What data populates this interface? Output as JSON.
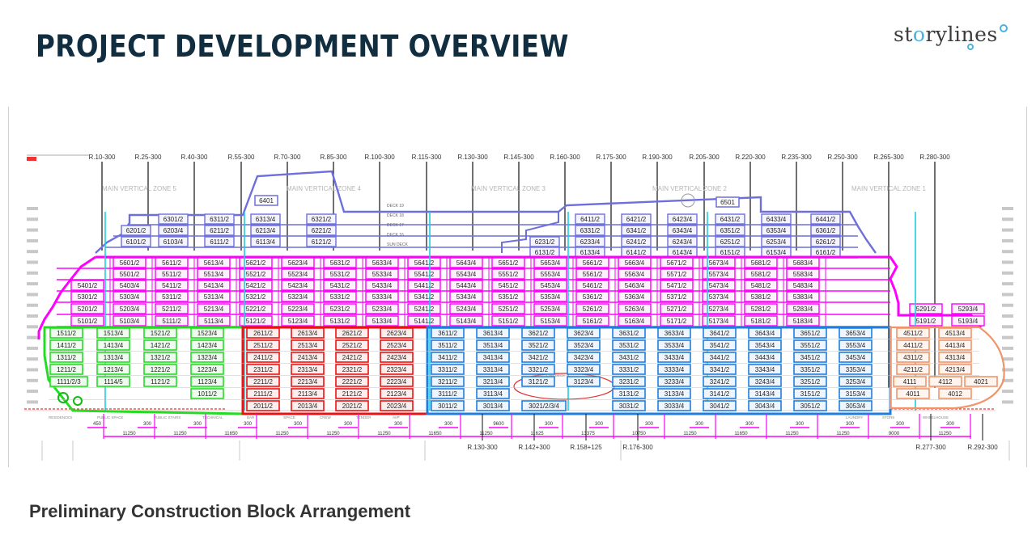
{
  "header": {
    "title": "PROJECT DEVELOPMENT OVERVIEW",
    "logo_text_pre": "st",
    "logo_text_o": "o",
    "logo_text_post": "rylines"
  },
  "caption": "Preliminary Construction Block Arrangement",
  "colors": {
    "title": "#112e41",
    "logo_accent": "#4ab3dc",
    "zone_superstructure": "#6f6fdc",
    "zone_accommodation": "#ff00ff",
    "zone_aft_hull": "#22dd22",
    "zone_mid_aft_hull": "#ee1111",
    "zone_mid_fore_hull": "#1e7ee0",
    "zone_fore_hull": "#f0956a"
  },
  "diagram": {
    "top_frames": [
      "R.10-300",
      "R.25-300",
      "R.40-300",
      "R.55-300",
      "R.70-300",
      "R.85-300",
      "R.100-300",
      "R.115-300",
      "R.130-300",
      "R.145-300",
      "R.160-300",
      "R.175-300",
      "R.190-300",
      "R.205-300",
      "R.220-300",
      "R.235-300",
      "R.250-300",
      "R.265-300",
      "R.280-300"
    ],
    "bottom_frames": [
      "R.130-300",
      "R.142+300",
      "R.158+125",
      "R.176-300",
      "R.277-300",
      "R.292-300"
    ],
    "zones": [
      "MAIN VERTICAL ZONE 5",
      "MAIN VERTICAL ZONE 4",
      "MAIN VERTICAL ZONE 3",
      "MAIN VERTICAL ZONE 2",
      "MAIN VERTICAL ZONE 1"
    ],
    "dimensions_upper": [
      "450",
      "300",
      "300",
      "300",
      "300",
      "300",
      "300",
      "300",
      "9600",
      "300",
      "300",
      "300",
      "300",
      "300",
      "300",
      "300",
      "300",
      "300"
    ],
    "dimensions_lower": [
      "11250",
      "11250",
      "11650",
      "11250",
      "11250",
      "11250",
      "11650",
      "11250",
      "11625",
      "13375",
      "10750",
      "11250",
      "11650",
      "11250",
      "11250",
      "9000",
      "11250"
    ],
    "deck_labels": [
      "DECK 19",
      "DECK 18",
      "DECK 17",
      "DECK 16",
      "SUN DECK"
    ],
    "superstructure_rows": [
      [
        "6401",
        "6501"
      ],
      [
        "6301/2",
        "6311/2",
        "6313/4",
        "6321/2",
        "6411/2",
        "6421/2",
        "6423/4",
        "6431/2",
        "6433/4",
        "6441/2"
      ],
      [
        "6201/2",
        "6203/4",
        "6211/2",
        "6213/4",
        "6221/2",
        "6331/2",
        "6341/2",
        "6343/4",
        "6351/2",
        "6353/4",
        "6361/2"
      ],
      [
        "6101/2",
        "6103/4",
        "6111/2",
        "6113/4",
        "6121/2",
        "6231/2",
        "6233/4",
        "6241/2",
        "6243/4",
        "6251/2",
        "6253/4",
        "6261/2"
      ],
      [
        "6131/2",
        "6133/4",
        "6141/2",
        "6143/4",
        "6151/2",
        "6153/4",
        "6161/2"
      ]
    ],
    "accommodation_rows": [
      [
        "5601/2",
        "5611/2",
        "5613/4",
        "5621/2",
        "5623/4",
        "5631/2",
        "5633/4",
        "5641/2",
        "5643/4",
        "5651/2",
        "5653/4",
        "5661/2",
        "5663/4",
        "5671/2",
        "5673/4",
        "5681/2",
        "5683/4"
      ],
      [
        "5501/2",
        "5511/2",
        "5513/4",
        "5521/2",
        "5523/4",
        "5531/2",
        "5533/4",
        "5541/2",
        "5543/4",
        "5551/2",
        "5553/4",
        "5561/2",
        "5563/4",
        "5571/2",
        "5573/4",
        "5581/2",
        "5583/4"
      ],
      [
        "5401/2",
        "5403/4",
        "5411/2",
        "5413/4",
        "5421/2",
        "5423/4",
        "5431/2",
        "5433/4",
        "5441/2",
        "5443/4",
        "5451/2",
        "5453/4",
        "5461/2",
        "5463/4",
        "5471/2",
        "5473/4",
        "5481/2",
        "5483/4"
      ],
      [
        "5301/2",
        "5303/4",
        "5311/2",
        "5313/4",
        "5321/2",
        "5323/4",
        "5331/2",
        "5333/4",
        "5341/2",
        "5343/4",
        "5351/2",
        "5353/4",
        "5361/2",
        "5363/4",
        "5371/2",
        "5373/4",
        "5381/2",
        "5383/4"
      ],
      [
        "5201/2",
        "5203/4",
        "5211/2",
        "5213/4",
        "5221/2",
        "5223/4",
        "5231/2",
        "5233/4",
        "5241/2",
        "5243/4",
        "5251/2",
        "5253/4",
        "5261/2",
        "5263/4",
        "5271/2",
        "5273/4",
        "5281/2",
        "5283/4",
        "5291/2",
        "5293/4"
      ],
      [
        "5101/2",
        "5103/4",
        "5111/2",
        "5113/4",
        "5121/2",
        "5123/4",
        "5131/2",
        "5133/4",
        "5141/2",
        "5143/4",
        "5151/2",
        "5153/4",
        "5161/2",
        "5163/4",
        "5171/2",
        "5173/4",
        "5181/2",
        "5183/4",
        "5191/2",
        "5193/4"
      ]
    ],
    "hull_rows": [
      {
        "aft": [
          "1511/2",
          "1513/4",
          "1521/2",
          "1523/4"
        ],
        "midaft": [
          "2611/2",
          "2613/4",
          "2621/2",
          "2623/4"
        ],
        "midfore": [
          "3611/2",
          "3613/4",
          "3621/2",
          "3623/4",
          "3631/2",
          "3633/4",
          "3641/2",
          "3643/4",
          "3651/2",
          "3653/4"
        ],
        "fore": [
          "4511/2",
          "4513/4"
        ]
      },
      {
        "aft": [
          "1411/2",
          "1413/4",
          "1421/2",
          "1423/4"
        ],
        "midaft": [
          "2511/2",
          "2513/4",
          "2521/2",
          "2523/4"
        ],
        "midfore": [
          "3511/2",
          "3513/4",
          "3521/2",
          "3523/4",
          "3531/2",
          "3533/4",
          "3541/2",
          "3543/4",
          "3551/2",
          "3553/4"
        ],
        "fore": [
          "4411/2",
          "4413/4"
        ]
      },
      {
        "aft": [
          "1311/2",
          "1313/4",
          "1321/2",
          "1323/4"
        ],
        "midaft": [
          "2411/2",
          "2413/4",
          "2421/2",
          "2423/4"
        ],
        "midfore": [
          "3411/2",
          "3413/4",
          "3421/2",
          "3423/4",
          "3431/2",
          "3433/4",
          "3441/2",
          "3443/4",
          "3451/2",
          "3453/4"
        ],
        "fore": [
          "4311/2",
          "4313/4"
        ]
      },
      {
        "aft": [
          "1211/2",
          "1213/4",
          "1221/2",
          "1223/4"
        ],
        "midaft": [
          "2311/2",
          "2313/4",
          "2321/2",
          "2323/4"
        ],
        "midfore": [
          "3311/2",
          "3313/4",
          "3321/2",
          "3323/4",
          "3331/2",
          "3333/4",
          "3341/2",
          "3343/4",
          "3351/2",
          "3353/4"
        ],
        "fore": [
          "4211/2",
          "4213/4"
        ]
      },
      {
        "aft": [
          "1111/2/3",
          "1114/5",
          "1121/2",
          "1123/4"
        ],
        "midaft": [
          "2211/2",
          "2213/4",
          "2221/2",
          "2223/4"
        ],
        "midfore": [
          "3211/2",
          "3213/4",
          "3121/2",
          "3123/4",
          "3231/2",
          "3233/4",
          "3241/2",
          "3243/4",
          "3251/2",
          "3253/4"
        ],
        "fore": [
          "4111",
          "4112",
          "4021"
        ]
      },
      {
        "aft": [
          "1011/2"
        ],
        "midaft": [
          "2111/2",
          "2113/4",
          "2121/2",
          "2123/4"
        ],
        "midfore": [
          "3111/2",
          "3113/4",
          "3131/2",
          "3133/4",
          "3141/2",
          "3143/4",
          "3151/2",
          "3153/4"
        ],
        "fore": [
          "4011",
          "4012"
        ]
      },
      {
        "aft": [],
        "midaft": [
          "2011/2",
          "2013/4",
          "2021/2",
          "2023/4"
        ],
        "midfore": [
          "3011/2",
          "3013/4",
          "3021/2/3/4",
          "3031/2",
          "3033/4",
          "3041/2",
          "3043/4",
          "3051/2",
          "3053/4"
        ],
        "fore": []
      }
    ],
    "room_labels": [
      "RESIDENCES",
      "PUBLIC SPACE",
      "PUBLIC STAIRS",
      "TECHNICAL",
      "BAR",
      "SPACE",
      "CREW",
      "TENDER",
      "AVP",
      "CAR DECK",
      "LAUNDRY",
      "STORE",
      "WHEELHOUSE"
    ]
  }
}
